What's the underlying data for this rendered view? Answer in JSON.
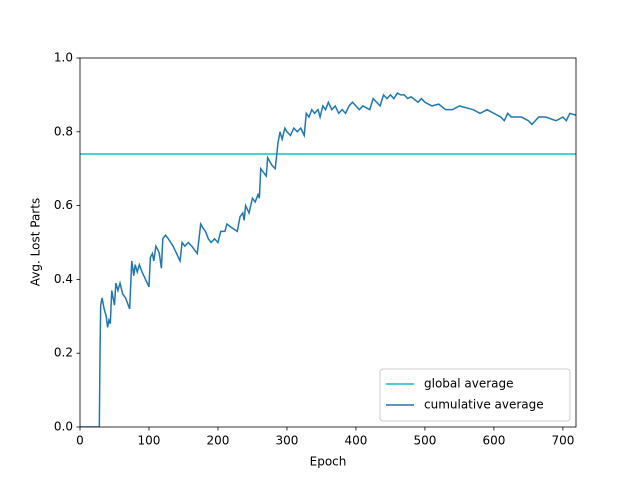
{
  "chart_data": {
    "type": "line",
    "xlabel": "Epoch",
    "ylabel": "Avg. Lost Parts",
    "xlim": [
      0,
      719
    ],
    "ylim": [
      0,
      1.0
    ],
    "xticks": [
      0,
      100,
      200,
      300,
      400,
      500,
      600,
      700
    ],
    "yticks": [
      {
        "value": 0,
        "label": "0.0"
      },
      0.2,
      0.4,
      0.6,
      0.8,
      {
        "value": 1,
        "label": "1.0"
      }
    ],
    "legend": "lower right",
    "series": [
      {
        "name": "global average",
        "color": "#17becf",
        "x": [
          0,
          719
        ],
        "values": [
          0.74,
          0.74
        ]
      },
      {
        "name": "cumulative average",
        "color": "#1f77b4",
        "x": [
          0,
          28,
          29,
          30,
          32,
          35,
          38,
          40,
          42,
          44,
          46,
          48,
          50,
          52,
          55,
          58,
          62,
          66,
          70,
          72,
          75,
          78,
          80,
          83,
          86,
          90,
          95,
          100,
          102,
          105,
          107,
          110,
          113,
          115,
          118,
          120,
          124,
          128,
          135,
          140,
          145,
          148,
          152,
          157,
          162,
          170,
          175,
          178,
          182,
          186,
          190,
          195,
          200,
          204,
          210,
          213,
          220,
          228,
          232,
          236,
          238,
          240,
          245,
          250,
          254,
          258,
          260,
          262,
          266,
          270,
          272,
          278,
          283,
          287,
          290,
          293,
          297,
          300,
          305,
          310,
          315,
          320,
          325,
          328,
          332,
          336,
          340,
          345,
          348,
          352,
          356,
          360,
          365,
          370,
          375,
          380,
          385,
          390,
          395,
          400,
          405,
          410,
          420,
          425,
          430,
          435,
          440,
          445,
          450,
          455,
          460,
          465,
          470,
          475,
          480,
          490,
          495,
          500,
          510,
          520,
          530,
          540,
          550,
          560,
          570,
          580,
          590,
          600,
          610,
          615,
          620,
          625,
          640,
          650,
          655,
          660,
          665,
          670,
          675,
          690,
          700,
          705,
          710,
          719
        ],
        "values": [
          0,
          0,
          0.2,
          0.33,
          0.35,
          0.32,
          0.3,
          0.27,
          0.29,
          0.28,
          0.37,
          0.35,
          0.33,
          0.39,
          0.37,
          0.39,
          0.36,
          0.35,
          0.33,
          0.32,
          0.45,
          0.41,
          0.44,
          0.42,
          0.44,
          0.42,
          0.4,
          0.38,
          0.46,
          0.47,
          0.45,
          0.49,
          0.48,
          0.47,
          0.43,
          0.51,
          0.52,
          0.51,
          0.49,
          0.47,
          0.45,
          0.5,
          0.49,
          0.5,
          0.49,
          0.47,
          0.55,
          0.54,
          0.53,
          0.51,
          0.5,
          0.51,
          0.5,
          0.53,
          0.53,
          0.55,
          0.54,
          0.53,
          0.57,
          0.58,
          0.56,
          0.6,
          0.58,
          0.62,
          0.61,
          0.63,
          0.62,
          0.7,
          0.69,
          0.68,
          0.73,
          0.71,
          0.7,
          0.77,
          0.8,
          0.78,
          0.81,
          0.8,
          0.79,
          0.81,
          0.8,
          0.81,
          0.79,
          0.85,
          0.84,
          0.86,
          0.85,
          0.86,
          0.84,
          0.87,
          0.86,
          0.88,
          0.86,
          0.87,
          0.85,
          0.86,
          0.85,
          0.87,
          0.88,
          0.87,
          0.86,
          0.87,
          0.86,
          0.89,
          0.88,
          0.87,
          0.9,
          0.89,
          0.9,
          0.89,
          0.905,
          0.9,
          0.9,
          0.89,
          0.895,
          0.88,
          0.89,
          0.88,
          0.87,
          0.875,
          0.86,
          0.86,
          0.87,
          0.865,
          0.86,
          0.85,
          0.86,
          0.85,
          0.84,
          0.83,
          0.85,
          0.84,
          0.84,
          0.83,
          0.82,
          0.83,
          0.84,
          0.84,
          0.84,
          0.83,
          0.84,
          0.83,
          0.85,
          0.845
        ]
      }
    ]
  }
}
